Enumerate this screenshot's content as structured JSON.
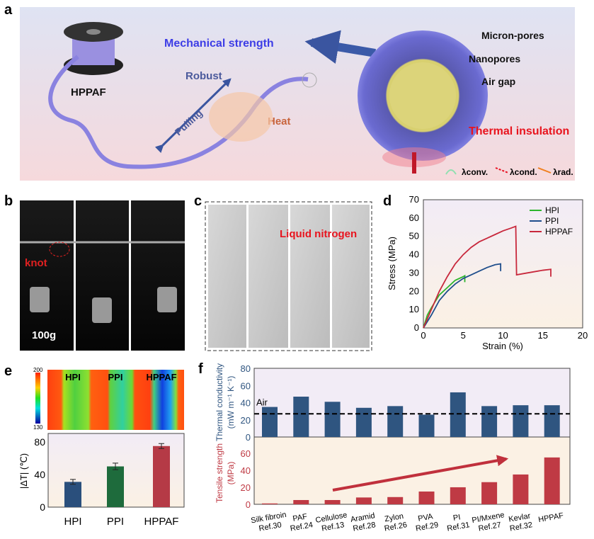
{
  "panel_labels": {
    "a": "a",
    "b": "b",
    "c": "c",
    "d": "d",
    "e": "e",
    "f": "f"
  },
  "panel_a": {
    "product": "HPPAF",
    "robust": "Robust",
    "pulling": "Pulling",
    "mechanical": "Mechanical strength",
    "heat": "Heat",
    "micron_pores": "Micron-pores",
    "nanopores": "Nanopores",
    "air_gap": "Air gap",
    "thermal_insulation": "Thermal insulation",
    "legend": {
      "conv": "λconv.",
      "cond": "λcond.",
      "rad": "λrad."
    },
    "colors": {
      "mechanical": "#3d3de6",
      "insulation": "#e8141e",
      "robust": "#4b5a9c",
      "heat": "#c8643c"
    }
  },
  "panel_b": {
    "knot": "knot",
    "weight": "100g"
  },
  "panel_c": {
    "label": "Liquid nitrogen"
  },
  "chart_data": [
    {
      "type": "line",
      "panel": "d",
      "xlabel": "Strain (%)",
      "ylabel": "Stress (MPa)",
      "xlim": [
        0,
        20
      ],
      "ylim": [
        0,
        70
      ],
      "xticks": [
        0,
        5,
        10,
        15,
        20
      ],
      "yticks": [
        0,
        10,
        20,
        30,
        40,
        50,
        60,
        70
      ],
      "legend_position": "top-right",
      "series": [
        {
          "name": "HPI",
          "color": "#2db52d",
          "points": [
            [
              0,
              0
            ],
            [
              0.5,
              7
            ],
            [
              1,
              11
            ],
            [
              2,
              18
            ],
            [
              3,
              22
            ],
            [
              4,
              26
            ],
            [
              5,
              28
            ],
            [
              5.2,
              28.5
            ],
            [
              5.2,
              25
            ]
          ]
        },
        {
          "name": "PPI",
          "color": "#1f4e8c",
          "points": [
            [
              0,
              0
            ],
            [
              1,
              7
            ],
            [
              2,
              15
            ],
            [
              3,
              20
            ],
            [
              4,
              24
            ],
            [
              5,
              27
            ],
            [
              6,
              29
            ],
            [
              7,
              31
            ],
            [
              8,
              33
            ],
            [
              9,
              34.5
            ],
            [
              9.7,
              35
            ],
            [
              9.7,
              31
            ]
          ]
        },
        {
          "name": "HPPAF",
          "color": "#c8283c",
          "points": [
            [
              0,
              0
            ],
            [
              1,
              10
            ],
            [
              2,
              20
            ],
            [
              3,
              28
            ],
            [
              4,
              35
            ],
            [
              5,
              40
            ],
            [
              6,
              44
            ],
            [
              7,
              47
            ],
            [
              8,
              49
            ],
            [
              9,
              51
            ],
            [
              10,
              53
            ],
            [
              11,
              54.5
            ],
            [
              11.6,
              55.5
            ],
            [
              11.7,
              29
            ],
            [
              13,
              30
            ],
            [
              15,
              31.5
            ],
            [
              16,
              32
            ],
            [
              16,
              28
            ]
          ]
        }
      ]
    },
    {
      "type": "bar",
      "panel": "e",
      "ylabel": "|ΔT| (℃)",
      "ylim": [
        0,
        90
      ],
      "yticks": [
        0,
        40,
        80
      ],
      "categories": [
        "HPI",
        "PPI",
        "HPPAF"
      ],
      "values": [
        31,
        50,
        75
      ],
      "errors": [
        3,
        4,
        3
      ],
      "colors": [
        "#2a4f7c",
        "#1e6b3c",
        "#b53a46"
      ],
      "heatmap": {
        "labels": [
          "HPI",
          "PPI",
          "HPPAF"
        ],
        "colorbar_max": "200",
        "colorbar_min": "130"
      }
    },
    {
      "type": "bar",
      "panel": "f",
      "categories": [
        [
          "Silk fibroin",
          "Ref.30"
        ],
        [
          "PAF",
          "Ref.24"
        ],
        [
          "Cellulose",
          "Ref.13"
        ],
        [
          "Aramid",
          "Ref.28"
        ],
        [
          "Zylon",
          "Ref.26"
        ],
        [
          "PVA",
          "Ref.29"
        ],
        [
          "PI",
          "Ref.31"
        ],
        [
          "PI/Mxene",
          "Ref.27"
        ],
        [
          "Kevlar",
          "Ref.32"
        ],
        [
          "HPPAF",
          ""
        ]
      ],
      "series": [
        {
          "name": "Thermal conductivity",
          "ylabel": [
            "Thermal conductivity",
            "(mW m⁻¹ K⁻¹)"
          ],
          "ylim": [
            0,
            80
          ],
          "yticks": [
            0,
            20,
            40,
            60,
            80
          ],
          "color": "#2f5580",
          "values": [
            35,
            47,
            41,
            34,
            36,
            26,
            52,
            36,
            37,
            37
          ],
          "reference": {
            "label": "Air",
            "value": 27
          }
        },
        {
          "name": "Tensile strength",
          "ylabel": [
            "Tensile strength",
            "(MPa)"
          ],
          "ylim": [
            0,
            79
          ],
          "yticks": [
            0,
            20,
            40,
            60
          ],
          "color": "#bf3a44",
          "values": [
            1,
            5,
            5,
            8,
            8.5,
            15,
            20,
            26,
            35,
            55
          ]
        }
      ]
    }
  ]
}
